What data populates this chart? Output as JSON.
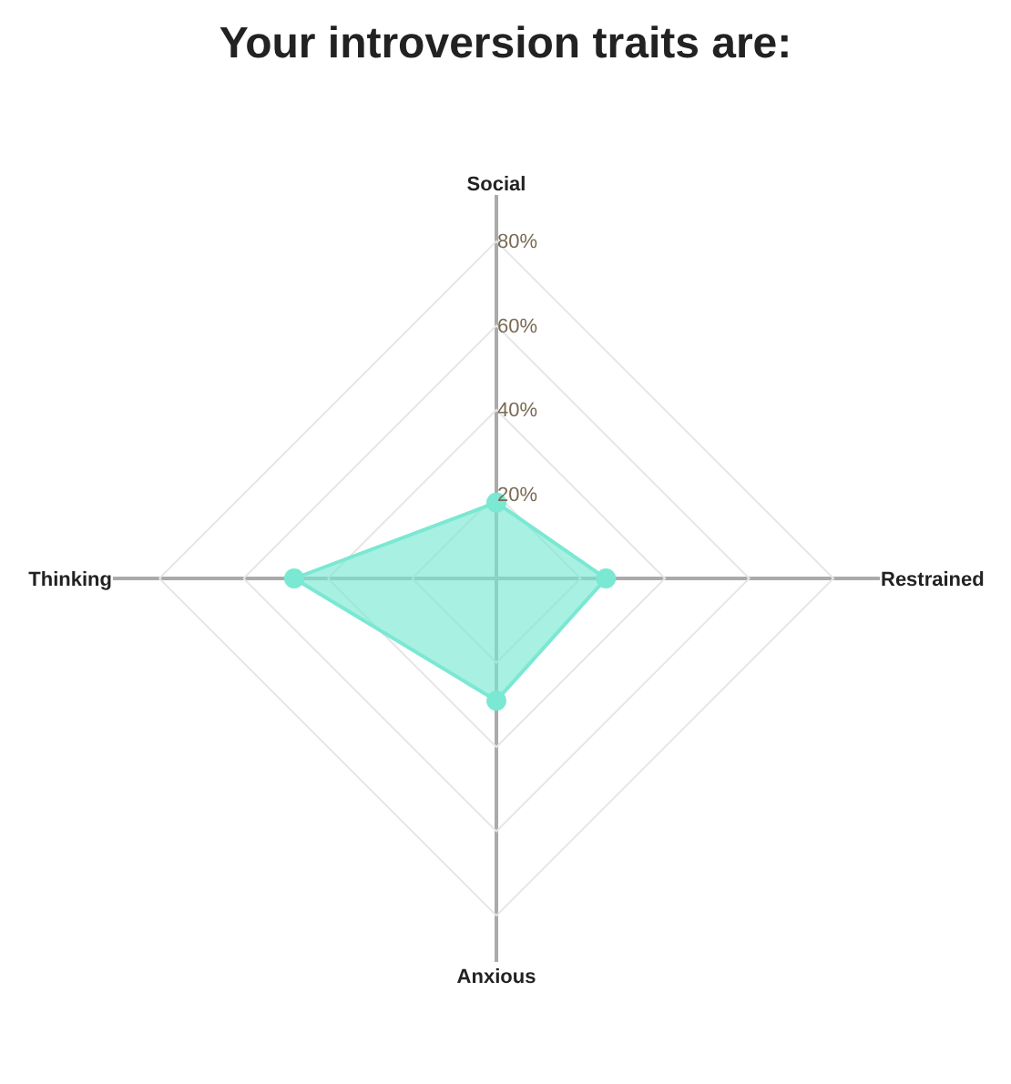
{
  "chart_data": {
    "type": "radar",
    "title": "Your introversion traits are:",
    "categories": [
      "Social",
      "Restrained",
      "Anxious",
      "Thinking"
    ],
    "series": [
      {
        "color": "#7ae8d2",
        "values": [
          18,
          26,
          29,
          48
        ]
      }
    ],
    "ylim": [
      0,
      91
    ],
    "yticks": [
      {
        "value": 20,
        "label": "20%"
      },
      {
        "value": 40,
        "label": "40%"
      },
      {
        "value": 60,
        "label": "60%"
      },
      {
        "value": 80,
        "label": "80%"
      }
    ],
    "grid": true,
    "marker": "circle"
  }
}
